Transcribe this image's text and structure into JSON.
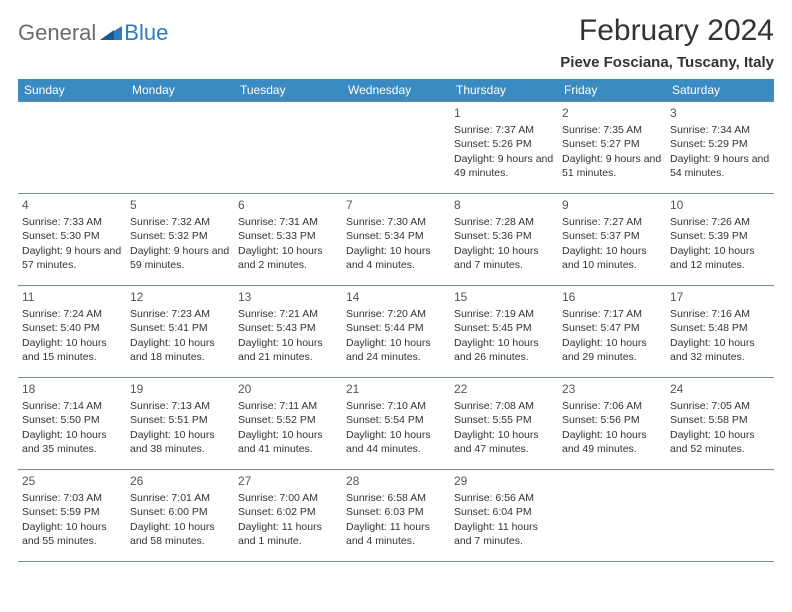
{
  "logo": {
    "general": "General",
    "blue": "Blue"
  },
  "title": "February 2024",
  "location": "Pieve Fosciana, Tuscany, Italy",
  "colors": {
    "header_bg": "#3b8bc3",
    "header_text": "#ffffff",
    "cell_border": "#6f8aa0",
    "body_text": "#333333",
    "logo_gray": "#6b6b6b",
    "logo_blue": "#2f7bbf"
  },
  "weekdays": [
    "Sunday",
    "Monday",
    "Tuesday",
    "Wednesday",
    "Thursday",
    "Friday",
    "Saturday"
  ],
  "days": [
    {
      "n": 1,
      "sunrise": "7:37 AM",
      "sunset": "5:26 PM",
      "daylight": "9 hours and 49 minutes."
    },
    {
      "n": 2,
      "sunrise": "7:35 AM",
      "sunset": "5:27 PM",
      "daylight": "9 hours and 51 minutes."
    },
    {
      "n": 3,
      "sunrise": "7:34 AM",
      "sunset": "5:29 PM",
      "daylight": "9 hours and 54 minutes."
    },
    {
      "n": 4,
      "sunrise": "7:33 AM",
      "sunset": "5:30 PM",
      "daylight": "9 hours and 57 minutes."
    },
    {
      "n": 5,
      "sunrise": "7:32 AM",
      "sunset": "5:32 PM",
      "daylight": "9 hours and 59 minutes."
    },
    {
      "n": 6,
      "sunrise": "7:31 AM",
      "sunset": "5:33 PM",
      "daylight": "10 hours and 2 minutes."
    },
    {
      "n": 7,
      "sunrise": "7:30 AM",
      "sunset": "5:34 PM",
      "daylight": "10 hours and 4 minutes."
    },
    {
      "n": 8,
      "sunrise": "7:28 AM",
      "sunset": "5:36 PM",
      "daylight": "10 hours and 7 minutes."
    },
    {
      "n": 9,
      "sunrise": "7:27 AM",
      "sunset": "5:37 PM",
      "daylight": "10 hours and 10 minutes."
    },
    {
      "n": 10,
      "sunrise": "7:26 AM",
      "sunset": "5:39 PM",
      "daylight": "10 hours and 12 minutes."
    },
    {
      "n": 11,
      "sunrise": "7:24 AM",
      "sunset": "5:40 PM",
      "daylight": "10 hours and 15 minutes."
    },
    {
      "n": 12,
      "sunrise": "7:23 AM",
      "sunset": "5:41 PM",
      "daylight": "10 hours and 18 minutes."
    },
    {
      "n": 13,
      "sunrise": "7:21 AM",
      "sunset": "5:43 PM",
      "daylight": "10 hours and 21 minutes."
    },
    {
      "n": 14,
      "sunrise": "7:20 AM",
      "sunset": "5:44 PM",
      "daylight": "10 hours and 24 minutes."
    },
    {
      "n": 15,
      "sunrise": "7:19 AM",
      "sunset": "5:45 PM",
      "daylight": "10 hours and 26 minutes."
    },
    {
      "n": 16,
      "sunrise": "7:17 AM",
      "sunset": "5:47 PM",
      "daylight": "10 hours and 29 minutes."
    },
    {
      "n": 17,
      "sunrise": "7:16 AM",
      "sunset": "5:48 PM",
      "daylight": "10 hours and 32 minutes."
    },
    {
      "n": 18,
      "sunrise": "7:14 AM",
      "sunset": "5:50 PM",
      "daylight": "10 hours and 35 minutes."
    },
    {
      "n": 19,
      "sunrise": "7:13 AM",
      "sunset": "5:51 PM",
      "daylight": "10 hours and 38 minutes."
    },
    {
      "n": 20,
      "sunrise": "7:11 AM",
      "sunset": "5:52 PM",
      "daylight": "10 hours and 41 minutes."
    },
    {
      "n": 21,
      "sunrise": "7:10 AM",
      "sunset": "5:54 PM",
      "daylight": "10 hours and 44 minutes."
    },
    {
      "n": 22,
      "sunrise": "7:08 AM",
      "sunset": "5:55 PM",
      "daylight": "10 hours and 47 minutes."
    },
    {
      "n": 23,
      "sunrise": "7:06 AM",
      "sunset": "5:56 PM",
      "daylight": "10 hours and 49 minutes."
    },
    {
      "n": 24,
      "sunrise": "7:05 AM",
      "sunset": "5:58 PM",
      "daylight": "10 hours and 52 minutes."
    },
    {
      "n": 25,
      "sunrise": "7:03 AM",
      "sunset": "5:59 PM",
      "daylight": "10 hours and 55 minutes."
    },
    {
      "n": 26,
      "sunrise": "7:01 AM",
      "sunset": "6:00 PM",
      "daylight": "10 hours and 58 minutes."
    },
    {
      "n": 27,
      "sunrise": "7:00 AM",
      "sunset": "6:02 PM",
      "daylight": "11 hours and 1 minute."
    },
    {
      "n": 28,
      "sunrise": "6:58 AM",
      "sunset": "6:03 PM",
      "daylight": "11 hours and 4 minutes."
    },
    {
      "n": 29,
      "sunrise": "6:56 AM",
      "sunset": "6:04 PM",
      "daylight": "11 hours and 7 minutes."
    }
  ],
  "labels": {
    "sunrise": "Sunrise: ",
    "sunset": "Sunset: ",
    "daylight": "Daylight: "
  },
  "layout": {
    "first_weekday_index": 4,
    "rows": 5,
    "cols": 7
  }
}
